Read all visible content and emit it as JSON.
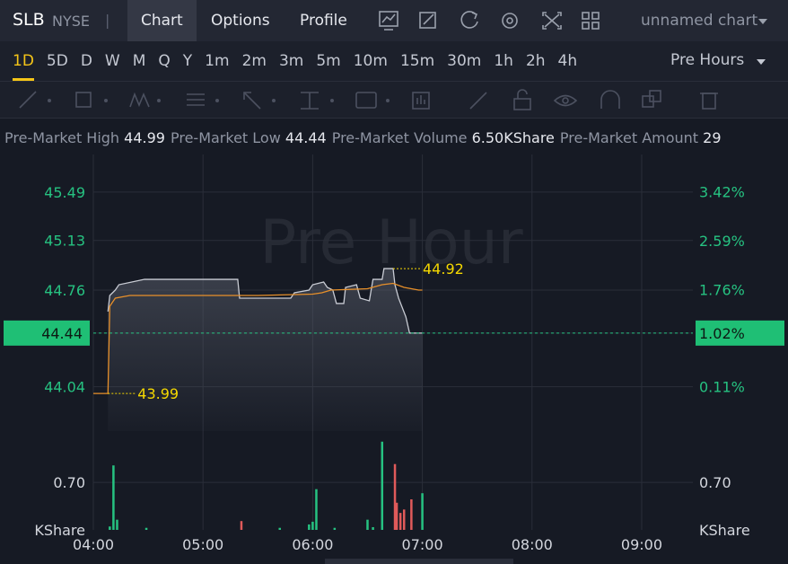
{
  "header": {
    "symbol": "SLB",
    "exchange": "NYSE",
    "tabs": [
      "Chart",
      "Options",
      "Profile"
    ],
    "chart_name": "unnamed chart"
  },
  "timeframes": [
    "1D",
    "5D",
    "D",
    "W",
    "M",
    "Q",
    "Y",
    "1m",
    "2m",
    "3m",
    "5m",
    "10m",
    "15m",
    "30m",
    "1h",
    "2h",
    "4h"
  ],
  "session": "Pre Hours",
  "stats": [
    {
      "label": "Pre-Market High",
      "value": "44.99"
    },
    {
      "label": "Pre-Market Low",
      "value": "44.44"
    },
    {
      "label": "Pre-Market Volume",
      "value": "6.50KShare"
    },
    {
      "label": "Pre-Market Amount",
      "value": "29"
    }
  ],
  "chart_data": {
    "type": "line",
    "watermark": "Pre Hour",
    "xlim": [
      "04:00",
      "09:28"
    ],
    "xticks": [
      "04:00",
      "05:00",
      "06:00",
      "07:00",
      "08:00",
      "09:00"
    ],
    "ylim": [
      43.71,
      45.77
    ],
    "yticks": [
      44.04,
      44.44,
      44.76,
      45.13,
      45.49
    ],
    "y2lim": [
      -0.64,
      4.05
    ],
    "y2ticks": [
      {
        "value": 0.11,
        "label": "0.11%"
      },
      {
        "value": 1.02,
        "label": "1.02%"
      },
      {
        "value": 1.76,
        "label": "1.76%"
      },
      {
        "value": 2.59,
        "label": "2.59%"
      },
      {
        "value": 3.42,
        "label": "3.42%"
      }
    ],
    "grid": true,
    "series": [
      {
        "color": "#c9ccd4",
        "x": [
          "04:08",
          "04:09",
          "04:12",
          "04:14",
          "04:28",
          "05:19",
          "05:20",
          "05:48",
          "05:50",
          "05:58",
          "06:00",
          "06:06",
          "06:08",
          "06:11",
          "06:13",
          "06:17",
          "06:18",
          "06:24",
          "06:26",
          "06:31",
          "06:33",
          "06:38",
          "06:39",
          "06:44",
          "06:45",
          "06:47",
          "06:51",
          "06:53",
          "07:00"
        ],
        "values": [
          44.6,
          44.72,
          44.76,
          44.8,
          44.84,
          44.84,
          44.7,
          44.7,
          44.74,
          44.76,
          44.8,
          44.82,
          44.78,
          44.76,
          44.66,
          44.66,
          44.78,
          44.8,
          44.7,
          44.68,
          44.84,
          44.84,
          44.92,
          44.92,
          44.8,
          44.7,
          44.56,
          44.44,
          44.44
        ]
      },
      {
        "color": "#e8902a",
        "x": [
          "04:00",
          "04:08",
          "04:09",
          "04:12",
          "04:20",
          "05:00",
          "05:30",
          "06:00",
          "06:05",
          "06:10",
          "06:30",
          "06:38",
          "06:44",
          "06:50",
          "06:58",
          "07:00"
        ],
        "values": [
          43.99,
          43.99,
          44.64,
          44.7,
          44.72,
          44.72,
          44.72,
          44.73,
          44.74,
          44.76,
          44.77,
          44.8,
          44.81,
          44.78,
          44.76,
          44.76
        ]
      }
    ],
    "last_price": 44.44,
    "last_change": {
      "value": 1.02,
      "label": "1.02%"
    },
    "annotations": [
      {
        "x": "06:44",
        "value": 44.92
      },
      {
        "x": "04:08",
        "value": 43.99
      }
    ],
    "volume": {
      "unit": "KShare",
      "vlim": [
        0,
        1.35
      ],
      "vticks": [
        {
          "value": 0.7,
          "label": "0.70"
        }
      ],
      "x": [
        "04:09",
        "04:11",
        "04:13",
        "04:29",
        "05:21",
        "05:42",
        "05:58",
        "06:00",
        "06:02",
        "06:12",
        "06:30",
        "06:33",
        "06:38",
        "06:45",
        "06:46",
        "06:48",
        "06:50",
        "06:54",
        "07:00"
      ],
      "values": [
        0.05,
        0.95,
        0.15,
        0.03,
        0.13,
        0.03,
        0.08,
        0.12,
        0.6,
        0.03,
        0.15,
        0.04,
        1.3,
        0.97,
        0.4,
        0.25,
        0.3,
        0.45,
        0.54
      ],
      "colors": [
        "#26c281",
        "#26c281",
        "#26c281",
        "#26c281",
        "#e05a5a",
        "#26c281",
        "#26c281",
        "#26c281",
        "#26c281",
        "#26c281",
        "#26c281",
        "#26c281",
        "#26c281",
        "#e05a5a",
        "#e05a5a",
        "#e05a5a",
        "#e05a5a",
        "#e05a5a",
        "#26c281"
      ]
    }
  }
}
